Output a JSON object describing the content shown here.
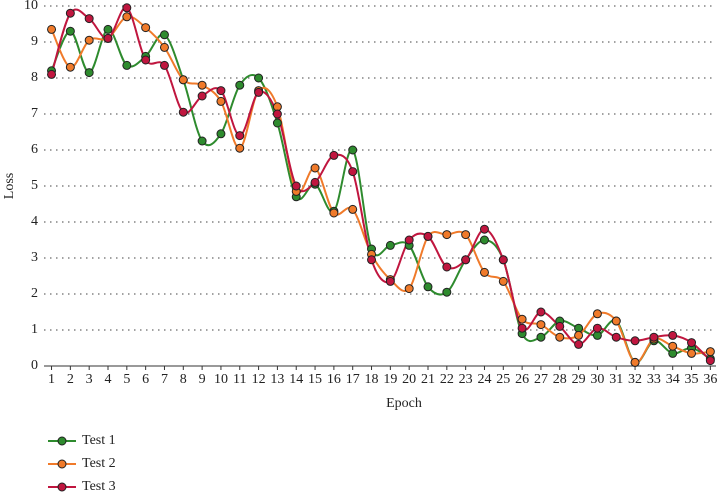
{
  "chart_data": {
    "type": "line",
    "x_label": "Epoch",
    "y_label": "Loss",
    "x": [
      1,
      2,
      3,
      4,
      5,
      6,
      7,
      8,
      9,
      10,
      11,
      12,
      13,
      14,
      15,
      16,
      17,
      18,
      19,
      20,
      21,
      22,
      23,
      24,
      25,
      26,
      27,
      28,
      29,
      30,
      31,
      32,
      33,
      34,
      35,
      36
    ],
    "xlim": [
      0.6,
      36.3
    ],
    "xticks": [
      1,
      2,
      3,
      4,
      5,
      6,
      7,
      8,
      9,
      10,
      11,
      12,
      13,
      14,
      15,
      16,
      17,
      18,
      19,
      20,
      21,
      22,
      23,
      24,
      25,
      26,
      27,
      28,
      29,
      30,
      31,
      32,
      33,
      34,
      35,
      36
    ],
    "ylim": [
      0,
      10
    ],
    "yticks": [
      0,
      1,
      2,
      3,
      4,
      5,
      6,
      7,
      8,
      9,
      10
    ],
    "grid": true,
    "legend": "bottom-left",
    "series": [
      {
        "name": "Test 1",
        "color": "#2e8b2e",
        "values": [
          8.2,
          9.3,
          8.15,
          9.35,
          8.35,
          8.6,
          9.2,
          7.95,
          6.25,
          6.45,
          7.8,
          8.0,
          6.75,
          4.7,
          5.05,
          4.3,
          6.0,
          3.25,
          3.35,
          3.35,
          2.2,
          2.05,
          2.95,
          3.5,
          2.95,
          0.9,
          0.8,
          1.25,
          1.05,
          0.85,
          1.25,
          0.1,
          0.7,
          0.35,
          0.5,
          0.2
        ]
      },
      {
        "name": "Test 2",
        "color": "#f07a2a",
        "values": [
          9.35,
          8.3,
          9.05,
          9.1,
          9.7,
          9.4,
          8.85,
          7.95,
          7.8,
          7.35,
          6.05,
          7.65,
          7.2,
          4.85,
          5.5,
          4.25,
          4.35,
          3.1,
          2.4,
          2.15,
          3.6,
          3.65,
          3.65,
          2.6,
          2.35,
          1.3,
          1.15,
          0.8,
          0.85,
          1.45,
          1.25,
          0.1,
          0.75,
          0.55,
          0.35,
          0.4
        ]
      },
      {
        "name": "Test 3",
        "color": "#c0163f",
        "values": [
          8.1,
          9.8,
          9.65,
          9.1,
          9.95,
          8.5,
          8.35,
          7.05,
          7.5,
          7.65,
          6.4,
          7.6,
          7.0,
          5.0,
          5.1,
          5.85,
          5.4,
          2.95,
          2.35,
          3.5,
          3.6,
          2.75,
          2.95,
          3.8,
          2.95,
          1.05,
          1.5,
          1.1,
          0.6,
          1.05,
          0.8,
          0.7,
          0.8,
          0.85,
          0.65,
          0.15
        ]
      }
    ]
  }
}
